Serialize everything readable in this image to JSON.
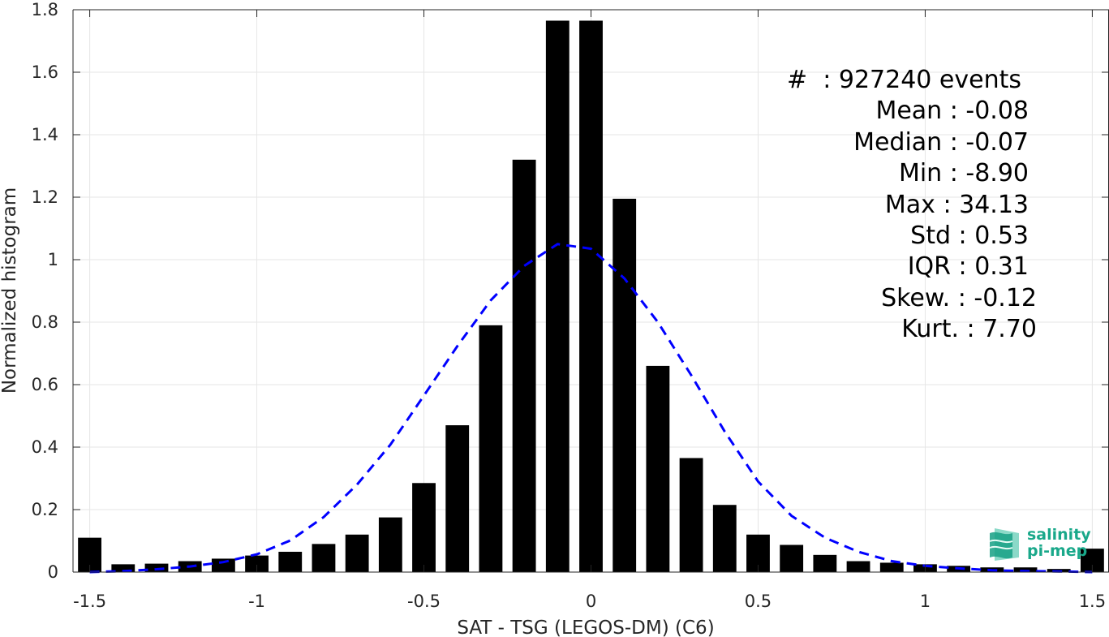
{
  "chart_data": {
    "type": "bar",
    "xlabel": "SAT - TSG (LEGOS-DM) (C6)",
    "ylabel": "Normalized histogram",
    "xlim": [
      -1.55,
      1.55
    ],
    "ylim": [
      0,
      1.8
    ],
    "xticks": [
      -1.5,
      -1,
      -0.5,
      0,
      0.5,
      1,
      1.5
    ],
    "xtick_labels": [
      "-1.5",
      "-1",
      "-0.5",
      "0",
      "0.5",
      "1",
      "1.5"
    ],
    "yticks": [
      0,
      0.2,
      0.4,
      0.6,
      0.8,
      1,
      1.2,
      1.4,
      1.6,
      1.8
    ],
    "ytick_labels": [
      "0",
      "0.2",
      "0.4",
      "0.6",
      "0.8",
      "1",
      "1.2",
      "1.4",
      "1.6",
      "1.8"
    ],
    "grid": true,
    "bar_color": "#000000",
    "bars": {
      "x": [
        -1.5,
        -1.4,
        -1.3,
        -1.2,
        -1.1,
        -1.0,
        -0.9,
        -0.8,
        -0.7,
        -0.6,
        -0.5,
        -0.4,
        -0.3,
        -0.2,
        -0.1,
        0.0,
        0.1,
        0.2,
        0.3,
        0.4,
        0.5,
        0.6,
        0.7,
        0.8,
        0.9,
        1.0,
        1.1,
        1.2,
        1.3,
        1.4,
        1.5
      ],
      "values": [
        0.11,
        0.025,
        0.027,
        0.035,
        0.043,
        0.053,
        0.065,
        0.09,
        0.12,
        0.175,
        0.285,
        0.47,
        0.79,
        1.32,
        1.765,
        1.765,
        1.195,
        0.66,
        0.365,
        0.215,
        0.12,
        0.087,
        0.055,
        0.035,
        0.03,
        0.025,
        0.02,
        0.015,
        0.015,
        0.01,
        0.075
      ]
    },
    "fit_curve": {
      "style": "dashed",
      "color": "#0000ff",
      "x": [
        -1.5,
        -1.4,
        -1.3,
        -1.2,
        -1.1,
        -1.0,
        -0.9,
        -0.8,
        -0.7,
        -0.6,
        -0.5,
        -0.4,
        -0.3,
        -0.2,
        -0.1,
        0.0,
        0.1,
        0.2,
        0.3,
        0.4,
        0.5,
        0.6,
        0.7,
        0.8,
        0.9,
        1.0,
        1.1,
        1.2,
        1.3,
        1.4,
        1.5
      ],
      "values": [
        0.0,
        0.003,
        0.009,
        0.018,
        0.032,
        0.057,
        0.101,
        0.176,
        0.28,
        0.408,
        0.565,
        0.723,
        0.87,
        0.98,
        1.05,
        1.035,
        0.94,
        0.8,
        0.63,
        0.45,
        0.29,
        0.18,
        0.11,
        0.065,
        0.035,
        0.02,
        0.012,
        0.006,
        0.003,
        0.002,
        0.0
      ]
    }
  },
  "stats": [
    {
      "label": "#  : 927240 events"
    },
    {
      "label": "Mean : -0.08"
    },
    {
      "label": "Median : -0.07"
    },
    {
      "label": "Min : -8.90"
    },
    {
      "label": "Max : 34.13"
    },
    {
      "label": "Std : 0.53"
    },
    {
      "label": "IQR : 0.31"
    },
    {
      "label": "Skew. : -0.12"
    },
    {
      "label": "Kurt. : 7.70"
    }
  ],
  "logo": {
    "line1": "salinity",
    "line2": "pi-mep",
    "icon": "salinity-wave-icon",
    "color": "#19a88a"
  }
}
